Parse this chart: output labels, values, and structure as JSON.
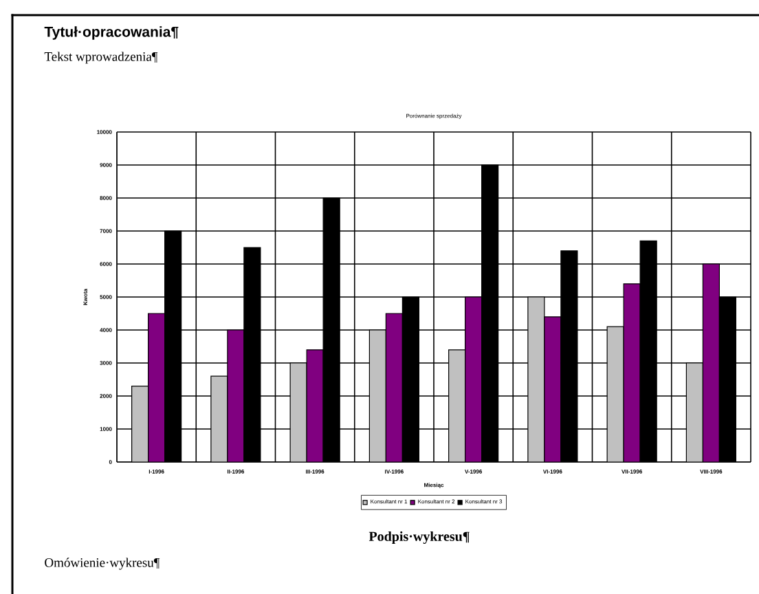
{
  "chart_data": {
    "type": "bar",
    "title": "Porównanie sprzedaży",
    "xlabel": "Miesiąc",
    "ylabel": "Kwota",
    "categories": [
      "I-1996",
      "II-1996",
      "III-1996",
      "IV-1996",
      "V-1996",
      "VI-1996",
      "VII-1996",
      "VIII-1996"
    ],
    "series": [
      {
        "name": "Konsultant nr 1",
        "color": "#c0c0c0",
        "values": [
          2300,
          2600,
          3000,
          4000,
          3400,
          5000,
          4100,
          3000
        ]
      },
      {
        "name": "Konsultant nr 2",
        "color": "#800080",
        "values": [
          4500,
          4000,
          3400,
          4500,
          5000,
          4400,
          5400,
          6000
        ]
      },
      {
        "name": "Konsultant nr 3",
        "color": "#000000",
        "values": [
          7000,
          6500,
          8000,
          5000,
          9000,
          6400,
          6700,
          5000
        ]
      }
    ],
    "ylim": [
      0,
      10000
    ],
    "yticks": [
      0,
      1000,
      2000,
      3000,
      4000,
      5000,
      6000,
      7000,
      8000,
      9000,
      10000
    ],
    "grid": true,
    "legend": "bottom",
    "annotations": [
      "Tytuł·opracowania¶",
      "Tekst wprowadzenia¶",
      "Podpis·wykresu¶",
      "Omówienie·wykresu¶"
    ]
  }
}
